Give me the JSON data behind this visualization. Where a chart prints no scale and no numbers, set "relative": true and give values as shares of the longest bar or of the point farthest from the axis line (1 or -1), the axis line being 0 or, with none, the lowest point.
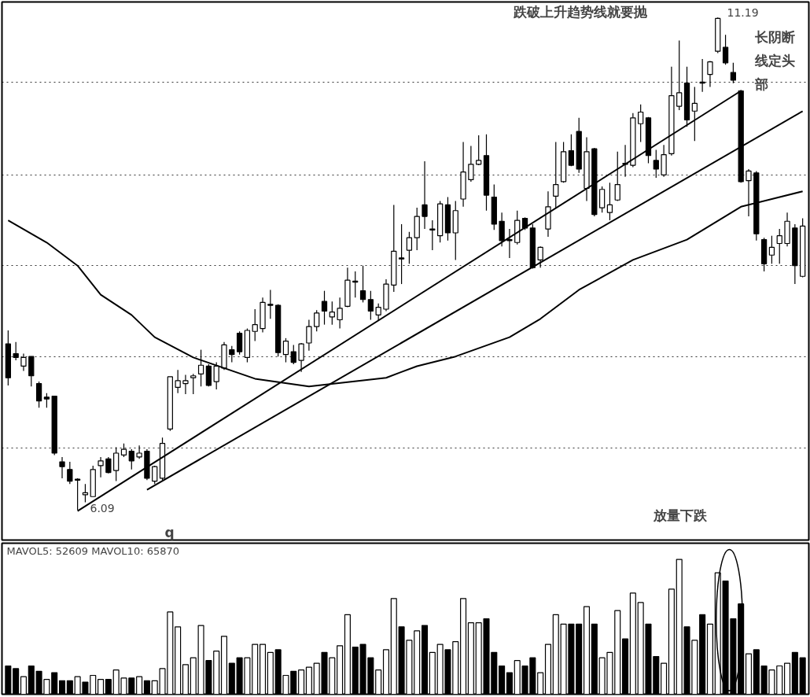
{
  "chart_data": [
    {
      "type": "candlestick",
      "categories": [
        null,
        null,
        null,
        null,
        null,
        null,
        null,
        null,
        null,
        null,
        null,
        null,
        null,
        null,
        null,
        null,
        null,
        null,
        null,
        null,
        null,
        null,
        null,
        null,
        null,
        null,
        null,
        null,
        null,
        null,
        null,
        null,
        null,
        null,
        null,
        null,
        null,
        null,
        null,
        null,
        null,
        null,
        null,
        null,
        null,
        null,
        null,
        null,
        null,
        null,
        null,
        null,
        null,
        null,
        null,
        null,
        null,
        null,
        null,
        null,
        null,
        null,
        null,
        null,
        null,
        null,
        null,
        null,
        null,
        null,
        null,
        null,
        null,
        null,
        null,
        null,
        null,
        null,
        null,
        null,
        null,
        null,
        null,
        null,
        null,
        null,
        null,
        null,
        null,
        null,
        null,
        null,
        null,
        null,
        null,
        null,
        null,
        null,
        null,
        null,
        null,
        null,
        null,
        null
      ],
      "ohlc": [
        [
          7.81,
          7.95,
          7.38,
          7.46
        ],
        [
          7.71,
          7.83,
          7.64,
          7.67
        ],
        [
          7.58,
          7.71,
          7.53,
          7.67
        ],
        [
          7.68,
          7.68,
          7.37,
          7.48
        ],
        [
          7.4,
          7.42,
          7.15,
          7.22
        ],
        [
          7.26,
          7.3,
          7.15,
          7.24
        ],
        [
          7.27,
          7.27,
          6.66,
          6.68
        ],
        [
          6.59,
          6.64,
          6.42,
          6.54
        ],
        [
          6.51,
          6.59,
          6.36,
          6.39
        ],
        [
          6.41,
          6.42,
          6.09,
          6.4
        ],
        [
          6.25,
          6.36,
          6.17,
          6.27
        ],
        [
          6.23,
          6.55,
          6.23,
          6.51
        ],
        [
          6.55,
          6.64,
          6.43,
          6.6
        ],
        [
          6.62,
          6.64,
          6.47,
          6.48
        ],
        [
          6.5,
          6.74,
          6.39,
          6.68
        ],
        [
          6.66,
          6.78,
          6.64,
          6.72
        ],
        [
          6.7,
          6.72,
          6.51,
          6.6
        ],
        [
          6.64,
          6.76,
          6.62,
          6.68
        ],
        [
          6.7,
          6.72,
          6.4,
          6.42
        ],
        [
          6.39,
          6.55,
          6.36,
          6.54
        ],
        [
          6.42,
          6.84,
          6.4,
          6.78
        ],
        [
          6.93,
          7.47,
          6.91,
          7.47
        ],
        [
          7.36,
          7.54,
          7.3,
          7.43
        ],
        [
          7.4,
          7.49,
          7.29,
          7.43
        ],
        [
          7.46,
          7.5,
          7.29,
          7.48
        ],
        [
          7.5,
          7.75,
          7.37,
          7.59
        ],
        [
          7.58,
          7.6,
          7.37,
          7.38
        ],
        [
          7.42,
          7.62,
          7.34,
          7.58
        ],
        [
          7.56,
          7.83,
          7.54,
          7.8
        ],
        [
          7.75,
          7.79,
          7.62,
          7.7
        ],
        [
          7.92,
          7.94,
          7.7,
          7.73
        ],
        [
          7.67,
          7.97,
          7.62,
          7.95
        ],
        [
          7.94,
          8.17,
          7.84,
          8.01
        ],
        [
          7.97,
          8.29,
          7.93,
          8.24
        ],
        [
          8.22,
          8.37,
          8.07,
          8.21
        ],
        [
          8.21,
          8.22,
          7.68,
          7.72
        ],
        [
          7.7,
          7.87,
          7.62,
          7.84
        ],
        [
          7.73,
          7.8,
          7.6,
          7.62
        ],
        [
          7.64,
          7.82,
          7.52,
          7.81
        ],
        [
          7.82,
          8.06,
          7.74,
          7.99
        ],
        [
          7.99,
          8.16,
          7.94,
          8.13
        ],
        [
          8.25,
          8.36,
          8.01,
          8.15
        ],
        [
          8.09,
          8.25,
          8.01,
          8.14
        ],
        [
          8.06,
          8.29,
          7.97,
          8.18
        ],
        [
          8.2,
          8.6,
          8.19,
          8.47
        ],
        [
          8.46,
          8.56,
          8.29,
          8.45
        ],
        [
          8.36,
          8.62,
          8.24,
          8.27
        ],
        [
          8.27,
          8.36,
          8.06,
          8.15
        ],
        [
          8.11,
          8.23,
          8.05,
          8.19
        ],
        [
          8.17,
          8.48,
          8.15,
          8.43
        ],
        [
          8.42,
          9.25,
          8.35,
          8.77
        ],
        [
          8.7,
          9.05,
          8.43,
          8.69
        ],
        [
          8.78,
          8.97,
          8.64,
          8.91
        ],
        [
          8.91,
          9.22,
          8.78,
          9.13
        ],
        [
          9.25,
          9.7,
          9.0,
          9.13
        ],
        [
          9.0,
          9.09,
          8.78,
          8.99
        ],
        [
          8.93,
          9.29,
          8.86,
          9.26
        ],
        [
          9.25,
          9.33,
          8.88,
          8.96
        ],
        [
          8.96,
          9.29,
          8.68,
          9.19
        ],
        [
          9.31,
          9.9,
          9.23,
          9.59
        ],
        [
          9.51,
          9.86,
          9.49,
          9.67
        ],
        [
          9.67,
          9.97,
          9.66,
          9.71
        ],
        [
          9.76,
          9.98,
          9.19,
          9.35
        ],
        [
          9.33,
          9.46,
          8.99,
          9.05
        ],
        [
          9.08,
          9.17,
          8.82,
          8.88
        ],
        [
          8.89,
          9.0,
          8.7,
          8.88
        ],
        [
          8.86,
          9.19,
          8.84,
          9.09
        ],
        [
          9.11,
          9.12,
          8.99,
          9.01
        ],
        [
          9.01,
          9.05,
          8.59,
          8.6
        ],
        [
          8.68,
          8.82,
          8.6,
          8.81
        ],
        [
          9.0,
          9.39,
          8.92,
          9.23
        ],
        [
          9.34,
          9.9,
          9.22,
          9.46
        ],
        [
          9.49,
          9.9,
          9.48,
          9.8
        ],
        [
          9.81,
          9.98,
          9.65,
          9.66
        ],
        [
          10.01,
          10.15,
          9.58,
          9.62
        ],
        [
          9.42,
          9.95,
          9.29,
          9.8
        ],
        [
          9.83,
          9.84,
          9.13,
          9.15
        ],
        [
          9.22,
          9.44,
          9.17,
          9.41
        ],
        [
          9.17,
          9.48,
          9.09,
          9.25
        ],
        [
          9.3,
          9.8,
          9.29,
          9.46
        ],
        [
          9.68,
          9.87,
          9.54,
          9.67
        ],
        [
          9.66,
          10.2,
          9.64,
          10.15
        ],
        [
          10.09,
          10.29,
          9.9,
          10.21
        ],
        [
          10.15,
          10.16,
          9.68,
          9.76
        ],
        [
          9.71,
          9.82,
          9.53,
          9.62
        ],
        [
          9.56,
          9.87,
          9.54,
          9.77
        ],
        [
          9.78,
          10.68,
          9.76,
          10.38
        ],
        [
          10.27,
          10.95,
          10.23,
          10.41
        ],
        [
          10.51,
          10.68,
          10.06,
          10.13
        ],
        [
          10.22,
          10.47,
          9.91,
          10.3
        ],
        [
          10.52,
          10.76,
          10.42,
          10.51
        ],
        [
          10.6,
          10.74,
          10.47,
          10.73
        ],
        [
          10.84,
          11.19,
          10.82,
          11.18
        ],
        [
          10.88,
          11.01,
          10.7,
          10.72
        ],
        [
          10.62,
          10.72,
          10.51,
          10.54
        ],
        [
          10.43,
          10.44,
          9.48,
          9.49
        ],
        [
          9.5,
          9.62,
          9.13,
          9.6
        ],
        [
          9.58,
          9.6,
          8.88,
          8.95
        ],
        [
          8.89,
          8.91,
          8.56,
          8.64
        ],
        [
          8.73,
          8.93,
          8.64,
          8.81
        ],
        [
          8.85,
          9.0,
          8.64,
          8.93
        ],
        [
          8.85,
          9.17,
          8.82,
          9.08
        ],
        [
          9.01,
          9.05,
          8.43,
          8.62
        ],
        [
          8.51,
          9.11,
          8.5,
          9.03
        ]
      ],
      "series": [
        {
          "type": "line",
          "values": [
            null,
            null,
            null,
            null,
            null,
            null,
            null,
            null,
            null,
            6.08,
            null,
            null,
            null,
            null,
            null,
            null,
            null,
            null,
            null,
            null,
            null,
            null,
            null,
            null,
            null,
            null,
            null,
            null,
            null,
            null,
            null,
            null,
            null,
            null,
            null,
            null,
            null,
            null,
            null,
            null,
            null,
            null,
            null,
            null,
            null,
            null,
            null,
            null,
            null,
            null,
            null,
            null,
            null,
            null,
            null,
            null,
            null,
            null,
            null,
            null,
            null,
            null,
            null,
            null,
            null,
            null,
            null,
            null,
            null,
            null,
            null,
            null,
            null,
            null,
            null,
            null,
            null,
            null,
            null,
            null,
            null,
            null,
            null,
            null,
            null,
            null,
            null,
            null,
            null,
            null,
            null,
            null,
            null,
            null,
            null,
            10.43,
            null,
            null,
            null,
            null,
            null,
            null,
            null,
            null
          ],
          "color": "#000000"
        },
        {
          "type": "line",
          "values": [
            null,
            null,
            null,
            null,
            null,
            null,
            null,
            null,
            null,
            null,
            null,
            null,
            null,
            null,
            null,
            null,
            null,
            null,
            6.3,
            null,
            null,
            null,
            null,
            null,
            null,
            null,
            null,
            null,
            null,
            null,
            null,
            null,
            null,
            null,
            null,
            null,
            null,
            null,
            null,
            null,
            null,
            null,
            null,
            null,
            null,
            null,
            null,
            null,
            null,
            null,
            null,
            null,
            null,
            null,
            null,
            null,
            null,
            null,
            null,
            null,
            null,
            null,
            null,
            null,
            null,
            null,
            null,
            null,
            null,
            null,
            null,
            null,
            null,
            null,
            null,
            null,
            null,
            null,
            null,
            null,
            null,
            null,
            null,
            null,
            null,
            null,
            null,
            null,
            null,
            null,
            null,
            null,
            null,
            null,
            null,
            null,
            null,
            null,
            null,
            null,
            null,
            null,
            null,
            10.22
          ],
          "color": "#000000"
        },
        {
          "type": "line",
          "values": [
            9.09,
            null,
            null,
            null,
            null,
            8.86,
            null,
            null,
            null,
            8.62,
            null,
            null,
            8.32,
            null,
            null,
            null,
            8.11,
            null,
            null,
            7.88,
            null,
            null,
            null,
            null,
            7.67,
            null,
            null,
            null,
            null,
            null,
            null,
            null,
            7.45,
            null,
            null,
            null,
            null,
            null,
            null,
            7.37,
            null,
            null,
            null,
            null,
            null,
            null,
            null,
            null,
            null,
            7.46,
            null,
            null,
            null,
            7.58,
            null,
            null,
            null,
            null,
            7.68,
            null,
            null,
            null,
            null,
            null,
            null,
            7.88,
            null,
            null,
            null,
            8.07,
            null,
            null,
            null,
            null,
            8.37,
            null,
            null,
            null,
            null,
            null,
            null,
            8.68,
            null,
            null,
            null,
            null,
            null,
            null,
            8.89,
            null,
            null,
            null,
            null,
            null,
            null,
            9.23,
            null,
            null,
            null,
            null,
            null,
            null,
            null,
            9.39
          ],
          "color": "#000000"
        }
      ],
      "ylim": [
        5.78,
        11.35
      ],
      "yticks": [
        {
          "value": 6.73,
          "label": null
        },
        {
          "value": 7.68,
          "label": null
        },
        {
          "value": 8.62,
          "label": null
        },
        {
          "value": 9.56,
          "label": null
        },
        {
          "value": 10.52,
          "label": null
        }
      ],
      "grid": "y",
      "tick_labels": false,
      "annotations": [
        "11.19",
        "6.09",
        "跌破上升趋势线就要抛",
        "长阴断线定头部",
        "q",
        "放量下跌"
      ]
    },
    {
      "type": "bar",
      "relative": true,
      "title": "MAVOL5: 52609 MAVOL10: 65870",
      "tick_labels": false,
      "categories": [
        null,
        null,
        null,
        null,
        null,
        null,
        null,
        null,
        null,
        null,
        null,
        null,
        null,
        null,
        null,
        null,
        null,
        null,
        null,
        null,
        null,
        null,
        null,
        null,
        null,
        null,
        null,
        null,
        null,
        null,
        null,
        null,
        null,
        null,
        null,
        null,
        null,
        null,
        null,
        null,
        null,
        null,
        null,
        null,
        null,
        null,
        null,
        null,
        null,
        null,
        null,
        null,
        null,
        null,
        null,
        null,
        null,
        null,
        null,
        null,
        null,
        null,
        null,
        null,
        null,
        null,
        null,
        null,
        null,
        null,
        null,
        null,
        null,
        null,
        null,
        null,
        null,
        null,
        null,
        null,
        null,
        null,
        null,
        null,
        null,
        null,
        null,
        null,
        null,
        null,
        null,
        null,
        null,
        null,
        null,
        null,
        null,
        null,
        null,
        null,
        null,
        null,
        null,
        null
      ],
      "values": [
        0.21,
        0.19,
        0.13,
        0.21,
        0.17,
        0.11,
        0.16,
        0.1,
        0.1,
        0.13,
        0.09,
        0.14,
        0.11,
        0.11,
        0.18,
        0.12,
        0.12,
        0.13,
        0.1,
        0.1,
        0.19,
        0.61,
        0.5,
        0.22,
        0.27,
        0.51,
        0.25,
        0.32,
        0.43,
        0.23,
        0.27,
        0.27,
        0.37,
        0.37,
        0.31,
        0.33,
        0.14,
        0.17,
        0.18,
        0.2,
        0.23,
        0.31,
        0.27,
        0.36,
        0.59,
        0.35,
        0.37,
        0.27,
        0.18,
        0.33,
        0.71,
        0.5,
        0.4,
        0.47,
        0.51,
        0.31,
        0.37,
        0.33,
        0.39,
        0.71,
        0.53,
        0.53,
        0.56,
        0.31,
        0.21,
        0.16,
        0.25,
        0.21,
        0.27,
        0.16,
        0.37,
        0.59,
        0.52,
        0.52,
        0.52,
        0.65,
        0.52,
        0.27,
        0.31,
        0.62,
        0.41,
        0.75,
        0.68,
        0.52,
        0.28,
        0.23,
        0.78,
        1,
        0.5,
        0.4,
        0.59,
        0.52,
        0.9,
        0.84,
        0.56,
        0.67,
        0.3,
        0.33,
        0.21,
        0.18,
        0.21,
        0.23,
        0.31,
        0.27
      ],
      "colors": [
        "#000000",
        "#000000",
        "#ffffff",
        "#000000",
        "#000000",
        "#ffffff",
        "#000000",
        "#000000",
        "#000000",
        "#ffffff",
        "#000000",
        "#ffffff",
        "#ffffff",
        "#000000",
        "#ffffff",
        "#ffffff",
        "#000000",
        "#ffffff",
        "#000000",
        "#ffffff",
        "#ffffff",
        "#ffffff",
        "#ffffff",
        "#ffffff",
        "#ffffff",
        "#ffffff",
        "#000000",
        "#ffffff",
        "#ffffff",
        "#000000",
        "#000000",
        "#ffffff",
        "#ffffff",
        "#ffffff",
        "#ffffff",
        "#000000",
        "#ffffff",
        "#000000",
        "#ffffff",
        "#ffffff",
        "#ffffff",
        "#000000",
        "#ffffff",
        "#ffffff",
        "#ffffff",
        "#000000",
        "#000000",
        "#000000",
        "#ffffff",
        "#ffffff",
        "#ffffff",
        "#000000",
        "#ffffff",
        "#ffffff",
        "#000000",
        "#ffffff",
        "#ffffff",
        "#000000",
        "#ffffff",
        "#ffffff",
        "#ffffff",
        "#ffffff",
        "#000000",
        "#000000",
        "#000000",
        "#000000",
        "#ffffff",
        "#000000",
        "#000000",
        "#ffffff",
        "#ffffff",
        "#ffffff",
        "#ffffff",
        "#000000",
        "#000000",
        "#ffffff",
        "#000000",
        "#ffffff",
        "#ffffff",
        "#ffffff",
        "#000000",
        "#ffffff",
        "#ffffff",
        "#000000",
        "#000000",
        "#ffffff",
        "#ffffff",
        "#ffffff",
        "#000000",
        "#ffffff",
        "#000000",
        "#ffffff",
        "#ffffff",
        "#000000",
        "#000000",
        "#000000",
        "#ffffff",
        "#000000",
        "#000000",
        "#ffffff",
        "#ffffff",
        "#ffffff",
        "#000000",
        "#000000"
      ]
    }
  ]
}
